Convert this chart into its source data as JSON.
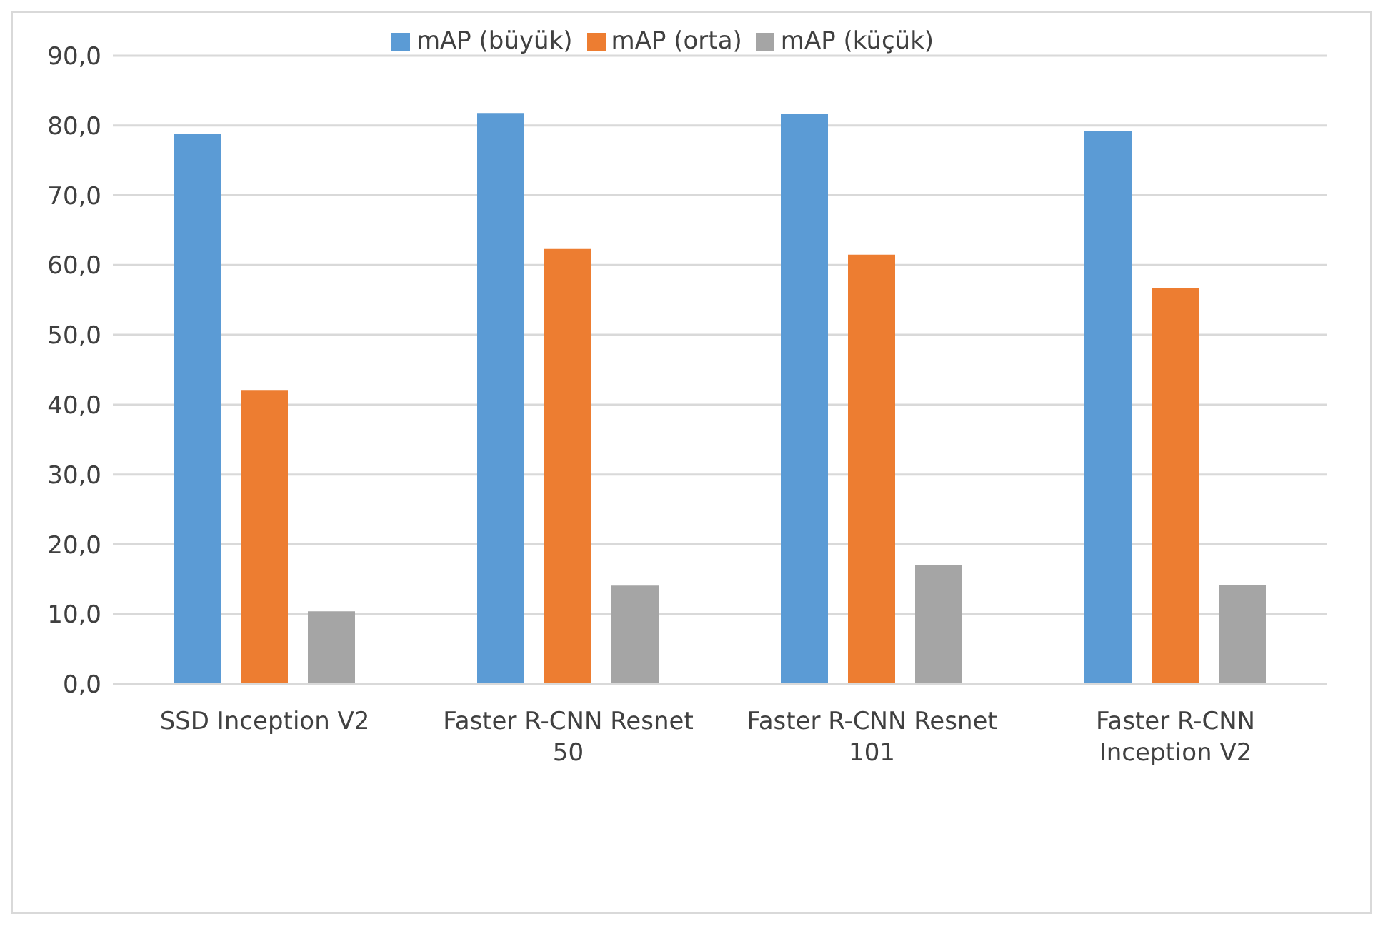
{
  "chart_data": {
    "type": "bar",
    "categories": [
      "SSD Inception V2",
      "Faster R-CNN Resnet 50",
      "Faster R-CNN Resnet 101",
      "Faster R-CNN Inception V2"
    ],
    "series": [
      {
        "name": "mAP (büyük)",
        "color": "#5b9bd5",
        "values": [
          78.8,
          81.8,
          81.7,
          79.2
        ]
      },
      {
        "name": "mAP (orta)",
        "color": "#ed7d31",
        "values": [
          42.1,
          62.3,
          61.5,
          56.7
        ]
      },
      {
        "name": "mAP (küçük)",
        "color": "#a5a5a5",
        "values": [
          10.4,
          14.1,
          17.0,
          14.2
        ]
      }
    ],
    "ylim": [
      0,
      90
    ],
    "yticks": [
      {
        "value": 0,
        "label": "0,0"
      },
      {
        "value": 10,
        "label": "10,0"
      },
      {
        "value": 20,
        "label": "20,0"
      },
      {
        "value": 30,
        "label": "30,0"
      },
      {
        "value": 40,
        "label": "40,0"
      },
      {
        "value": 50,
        "label": "50,0"
      },
      {
        "value": 60,
        "label": "60,0"
      },
      {
        "value": 70,
        "label": "70,0"
      },
      {
        "value": 80,
        "label": "80,0"
      },
      {
        "value": 90,
        "label": "90,0"
      }
    ],
    "grid": "y",
    "legend": "top"
  }
}
